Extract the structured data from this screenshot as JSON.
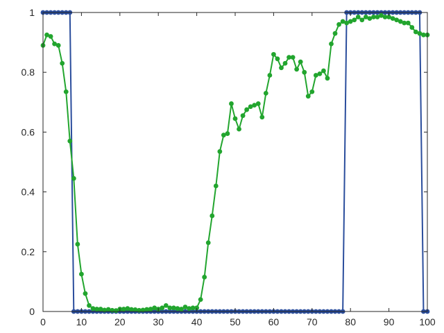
{
  "chart_data": {
    "type": "line",
    "title": "",
    "xlabel": "",
    "ylabel": "",
    "xlim": [
      0,
      100
    ],
    "ylim": [
      0,
      1
    ],
    "grid": false,
    "legend": "none",
    "x_ticks": [
      0,
      10,
      20,
      30,
      40,
      50,
      60,
      70,
      80,
      90,
      100
    ],
    "y_ticks": [
      0,
      0.2,
      0.4,
      0.6,
      0.8,
      1
    ],
    "x": [
      0,
      1,
      2,
      3,
      4,
      5,
      6,
      7,
      8,
      9,
      10,
      11,
      12,
      13,
      14,
      15,
      16,
      17,
      18,
      19,
      20,
      21,
      22,
      23,
      24,
      25,
      26,
      27,
      28,
      29,
      30,
      31,
      32,
      33,
      34,
      35,
      36,
      37,
      38,
      39,
      40,
      41,
      42,
      43,
      44,
      45,
      46,
      47,
      48,
      49,
      50,
      51,
      52,
      53,
      54,
      55,
      56,
      57,
      58,
      59,
      60,
      61,
      62,
      63,
      64,
      65,
      66,
      67,
      68,
      69,
      70,
      71,
      72,
      73,
      74,
      75,
      76,
      77,
      78,
      79,
      80,
      81,
      82,
      83,
      84,
      85,
      86,
      87,
      88,
      89,
      90,
      91,
      92,
      93,
      94,
      95,
      96,
      97,
      98,
      99,
      100
    ],
    "series": [
      {
        "color": "#2a4d9c",
        "values": [
          1,
          1,
          1,
          1,
          1,
          1,
          1,
          1,
          0,
          0,
          0,
          0,
          0,
          0,
          0,
          0,
          0,
          0,
          0,
          0,
          0,
          0,
          0,
          0,
          0,
          0,
          0,
          0,
          0,
          0,
          0,
          0,
          0,
          0,
          0,
          0,
          0,
          0,
          0,
          0,
          0,
          0,
          0,
          0,
          0,
          0,
          0,
          0,
          0,
          0,
          0,
          0,
          0,
          0,
          0,
          0,
          0,
          0,
          0,
          0,
          0,
          0,
          0,
          0,
          0,
          0,
          0,
          0,
          0,
          0,
          0,
          0,
          0,
          0,
          0,
          0,
          0,
          0,
          0,
          1,
          1,
          1,
          1,
          1,
          1,
          1,
          1,
          1,
          1,
          1,
          1,
          1,
          1,
          1,
          1,
          1,
          1,
          1,
          1,
          0,
          0
        ]
      },
      {
        "color": "#22a52e",
        "values": [
          0.89,
          0.925,
          0.92,
          0.895,
          0.89,
          0.83,
          0.735,
          0.57,
          0.445,
          0.225,
          0.125,
          0.06,
          0.02,
          0.01,
          0.008,
          0.008,
          0.005,
          0.007,
          0.004,
          0.003,
          0.008,
          0.008,
          0.01,
          0.007,
          0.006,
          0.004,
          0.005,
          0.007,
          0.008,
          0.012,
          0.008,
          0.012,
          0.02,
          0.012,
          0.012,
          0.01,
          0.008,
          0.015,
          0.01,
          0.012,
          0.012,
          0.04,
          0.115,
          0.23,
          0.32,
          0.42,
          0.535,
          0.59,
          0.595,
          0.695,
          0.645,
          0.61,
          0.655,
          0.675,
          0.685,
          0.69,
          0.695,
          0.65,
          0.73,
          0.79,
          0.86,
          0.845,
          0.815,
          0.83,
          0.85,
          0.85,
          0.81,
          0.835,
          0.8,
          0.72,
          0.735,
          0.79,
          0.795,
          0.805,
          0.78,
          0.895,
          0.93,
          0.96,
          0.97,
          0.965,
          0.97,
          0.975,
          0.985,
          0.975,
          0.985,
          0.98,
          0.985,
          0.985,
          0.99,
          0.985,
          0.985,
          0.98,
          0.975,
          0.97,
          0.965,
          0.965,
          0.95,
          0.935,
          0.93,
          0.925,
          0.925
        ]
      }
    ]
  }
}
